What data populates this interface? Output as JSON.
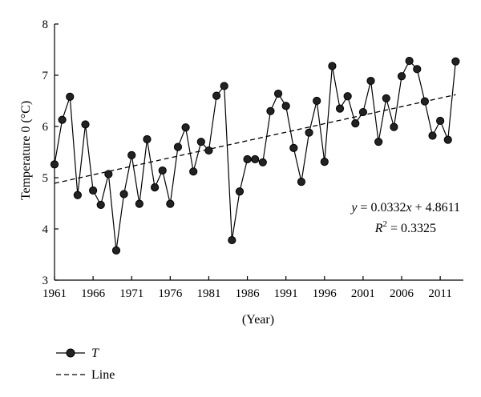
{
  "chart_data": {
    "type": "line",
    "title": "",
    "xlabel": "(Year)",
    "ylabel": "Temperature 0 (°C)",
    "xlim": [
      1961,
      2014
    ],
    "ylim": [
      3,
      8
    ],
    "x_ticks": [
      1961,
      1966,
      1971,
      1976,
      1981,
      1986,
      1991,
      1996,
      2001,
      2006,
      2011
    ],
    "x_tick_labels": [
      "1961",
      "1966",
      "1971",
      "1976",
      "1981",
      "1986",
      "1991",
      "1996",
      "2001",
      "2006",
      "2011"
    ],
    "y_ticks": [
      3,
      4,
      5,
      6,
      7,
      8
    ],
    "y_tick_labels": [
      "3",
      "4",
      "5",
      "6",
      "7",
      "8"
    ],
    "grid": false,
    "legend_position": "bottom-left",
    "series": [
      {
        "name": "T",
        "style": "solid line with filled circle markers",
        "color": "#000000",
        "x": [
          1961,
          1962,
          1963,
          1964,
          1965,
          1966,
          1967,
          1968,
          1969,
          1970,
          1971,
          1972,
          1973,
          1974,
          1975,
          1976,
          1977,
          1978,
          1979,
          1980,
          1981,
          1982,
          1983,
          1984,
          1985,
          1986,
          1987,
          1988,
          1989,
          1990,
          1991,
          1992,
          1993,
          1994,
          1995,
          1996,
          1997,
          1998,
          1999,
          2000,
          2001,
          2002,
          2003,
          2004,
          2005,
          2006,
          2007,
          2008,
          2009,
          2010,
          2011,
          2012,
          2013
        ],
        "y": [
          5.26,
          6.13,
          6.58,
          4.66,
          6.04,
          4.75,
          4.47,
          5.07,
          3.58,
          4.68,
          5.44,
          4.49,
          5.75,
          4.81,
          5.14,
          4.49,
          5.6,
          5.98,
          5.12,
          5.7,
          5.53,
          6.6,
          6.79,
          3.78,
          4.73,
          5.36,
          5.36,
          5.3,
          6.3,
          6.64,
          6.4,
          5.58,
          4.92,
          5.88,
          6.5,
          5.31,
          7.18,
          6.35,
          6.59,
          6.06,
          6.28,
          6.89,
          5.7,
          6.55,
          5.99,
          6.98,
          7.28,
          7.12,
          6.49,
          5.82,
          6.11,
          5.74,
          7.27
        ]
      },
      {
        "name": "Line",
        "style": "dashed line",
        "color": "#000000",
        "x": [
          1961,
          2013
        ],
        "y": [
          4.89,
          6.62
        ]
      }
    ],
    "annotations": [
      {
        "text_parts": [
          "y",
          " = 0.0332",
          "x",
          " + 4.8611"
        ]
      },
      {
        "text_parts": [
          "R",
          "2",
          " = 0.3325"
        ]
      }
    ]
  },
  "legend": [
    {
      "label": "T"
    },
    {
      "label": "Line"
    }
  ]
}
